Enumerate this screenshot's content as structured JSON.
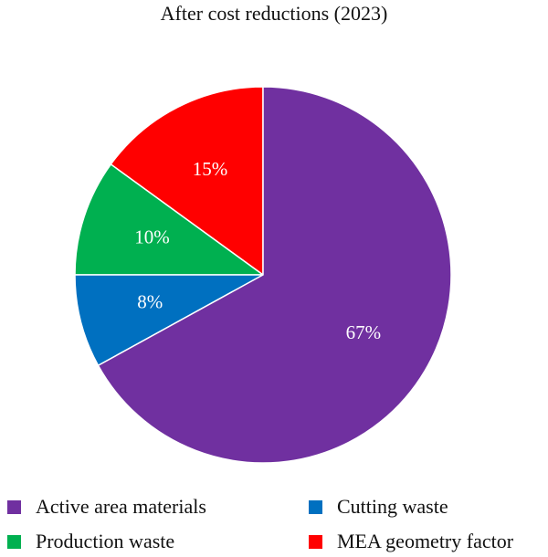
{
  "chart_data": {
    "type": "pie",
    "title": "After cost reductions (2023)",
    "slices": [
      {
        "label": "MEA geometry factor",
        "value": 15,
        "display": "15%",
        "color": "#ff0000"
      },
      {
        "label": "Production waste",
        "value": 10,
        "display": "10%",
        "color": "#00b050"
      },
      {
        "label": "Cutting waste",
        "value": 8,
        "display": "8%",
        "color": "#0070c0"
      },
      {
        "label": "Active area materials",
        "value": 67,
        "display": "67%",
        "color": "#7030a0"
      }
    ],
    "legend": {
      "placement": "bottom",
      "entries": [
        {
          "label": "Active area materials",
          "color": "#7030a0"
        },
        {
          "label": "Cutting waste",
          "color": "#0070c0"
        },
        {
          "label": "Production waste",
          "color": "#00b050"
        },
        {
          "label": "MEA geometry factor",
          "color": "#ff0000"
        }
      ]
    }
  }
}
